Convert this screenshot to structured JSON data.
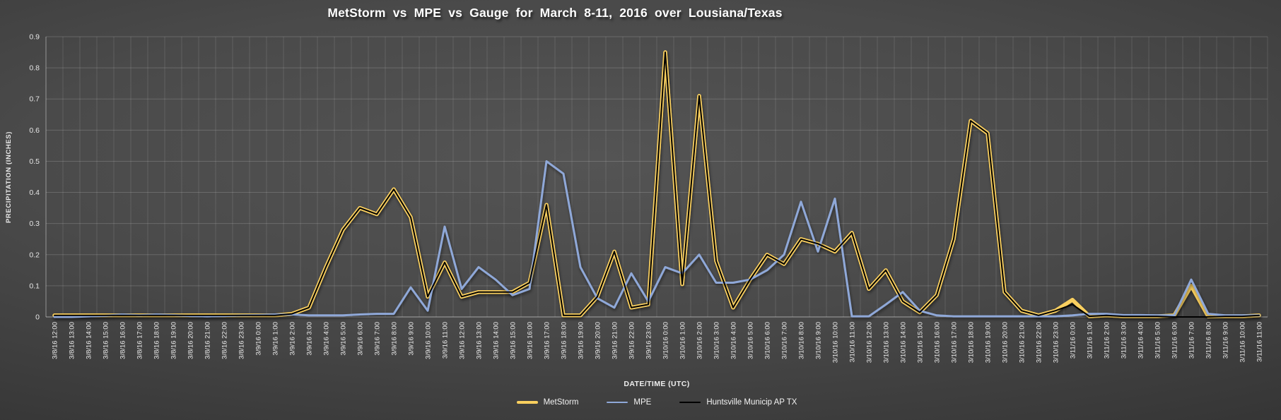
{
  "chart_data": {
    "type": "line",
    "title": "MetStorm  vs  MPE  vs  Gauge  for  March  8-11,  2016  over  Lousiana/Texas",
    "xlabel": "DATE/TIME (UTC)",
    "ylabel": "PRECIPITATION (INCHES)",
    "ylim": [
      0,
      0.9
    ],
    "grid": true,
    "legend_position": "bottom",
    "y_tick_values": [
      0,
      0.1,
      0.2,
      0.3,
      0.4,
      0.5,
      0.6,
      0.7,
      0.8,
      0.9
    ],
    "y_tick_labels": [
      "0",
      "0.1",
      "0.2",
      "0.3",
      "0.4",
      "0.5",
      "0.6",
      "0.7",
      "0.8",
      "0.9"
    ],
    "categories": [
      "3/8/16 12:00",
      "3/8/16 13:00",
      "3/8/16 14:00",
      "3/8/16 15:00",
      "3/8/16 16:00",
      "3/8/16 17:00",
      "3/8/16 18:00",
      "3/8/16 19:00",
      "3/8/16 20:00",
      "3/8/16 21:00",
      "3/8/16 22:00",
      "3/8/16 23:00",
      "3/9/16 0:00",
      "3/9/16 1:00",
      "3/9/16 2:00",
      "3/9/16 3:00",
      "3/9/16 4:00",
      "3/9/16 5:00",
      "3/9/16 6:00",
      "3/9/16 7:00",
      "3/9/16 8:00",
      "3/9/16 9:00",
      "3/9/16 10:00",
      "3/9/16 11:00",
      "3/9/16 12:00",
      "3/9/16 13:00",
      "3/9/16 14:00",
      "3/9/16 15:00",
      "3/9/16 16:00",
      "3/9/16 17:00",
      "3/9/16 18:00",
      "3/9/16 19:00",
      "3/9/16 20:00",
      "3/9/16 21:00",
      "3/9/16 22:00",
      "3/9/16 23:00",
      "3/10/16 0:00",
      "3/10/16 1:00",
      "3/10/16 2:00",
      "3/10/16 3:00",
      "3/10/16 4:00",
      "3/10/16 5:00",
      "3/10/16 6:00",
      "3/10/16 7:00",
      "3/10/16 8:00",
      "3/10/16 9:00",
      "3/10/16 10:00",
      "3/10/16 11:00",
      "3/10/16 12:00",
      "3/10/16 13:00",
      "3/10/16 14:00",
      "3/10/16 15:00",
      "3/10/16 16:00",
      "3/10/16 17:00",
      "3/10/16 18:00",
      "3/10/16 19:00",
      "3/10/16 20:00",
      "3/10/16 21:00",
      "3/10/16 22:00",
      "3/10/16 23:00",
      "3/11/16 0:00",
      "3/11/16 1:00",
      "3/11/16 2:00",
      "3/11/16 3:00",
      "3/11/16 4:00",
      "3/11/16 5:00",
      "3/11/16 6:00",
      "3/11/16 7:00",
      "3/11/16 8:00",
      "3/11/16 9:00",
      "3/11/16 10:00",
      "3/11/16 11:00"
    ],
    "series": [
      {
        "name": "MetStorm",
        "color": "#F9CF5E",
        "width": 5.5,
        "values": [
          0.005,
          0.005,
          0.005,
          0.005,
          0.005,
          0.005,
          0.005,
          0.005,
          0.005,
          0.005,
          0.005,
          0.005,
          0.005,
          0.005,
          0.01,
          0.03,
          0.16,
          0.28,
          0.35,
          0.33,
          0.41,
          0.32,
          0.065,
          0.175,
          0.065,
          0.08,
          0.08,
          0.08,
          0.11,
          0.36,
          0.005,
          0.005,
          0.065,
          0.21,
          0.03,
          0.04,
          0.85,
          0.105,
          0.71,
          0.18,
          0.03,
          0.12,
          0.2,
          0.17,
          0.25,
          0.235,
          0.21,
          0.27,
          0.09,
          0.15,
          0.05,
          0.015,
          0.07,
          0.25,
          0.63,
          0.59,
          0.08,
          0.02,
          0.005,
          0.02,
          0.055,
          0.002,
          0.005,
          0.002,
          0.002,
          0.002,
          0.005,
          0.1,
          0.002,
          0.002,
          0.002,
          0.005
        ]
      },
      {
        "name": "MPE",
        "color": "#8FA8D8",
        "width": 3,
        "values": [
          0,
          0,
          0.002,
          0.004,
          0.008,
          0.005,
          0.008,
          0.006,
          0.003,
          0.002,
          0.003,
          0.005,
          0.006,
          0.008,
          0.008,
          0.005,
          0.005,
          0.005,
          0.008,
          0.01,
          0.01,
          0.095,
          0.02,
          0.29,
          0.09,
          0.16,
          0.12,
          0.07,
          0.09,
          0.5,
          0.46,
          0.16,
          0.06,
          0.03,
          0.14,
          0.05,
          0.16,
          0.14,
          0.2,
          0.11,
          0.11,
          0.12,
          0.15,
          0.2,
          0.37,
          0.21,
          0.38,
          0.002,
          0.002,
          0.04,
          0.08,
          0.02,
          0.005,
          0.002,
          0.002,
          0.002,
          0.002,
          0.002,
          0.002,
          0.002,
          0.005,
          0.01,
          0.01,
          0.006,
          0.006,
          0.005,
          0.005,
          0.12,
          0.01,
          0.005,
          0.005,
          0.005
        ]
      },
      {
        "name": "Huntsville Municip AP TX",
        "color": "#000000",
        "width": 2,
        "values": [
          0.005,
          0.005,
          0.005,
          0.005,
          0.005,
          0.005,
          0.005,
          0.005,
          0.005,
          0.005,
          0.005,
          0.005,
          0.005,
          0.005,
          0.01,
          0.03,
          0.16,
          0.28,
          0.35,
          0.33,
          0.41,
          0.32,
          0.065,
          0.175,
          0.065,
          0.08,
          0.08,
          0.08,
          0.11,
          0.36,
          0.005,
          0.005,
          0.065,
          0.21,
          0.03,
          0.04,
          0.85,
          0.105,
          0.71,
          0.18,
          0.03,
          0.12,
          0.2,
          0.17,
          0.25,
          0.235,
          0.21,
          0.27,
          0.09,
          0.15,
          0.05,
          0.015,
          0.07,
          0.25,
          0.63,
          0.59,
          0.08,
          0.02,
          0.005,
          0.02,
          0.04,
          0.002,
          0.005,
          0.002,
          0.002,
          0.002,
          0,
          0,
          0,
          0.002,
          0.002,
          0.005
        ]
      }
    ]
  }
}
